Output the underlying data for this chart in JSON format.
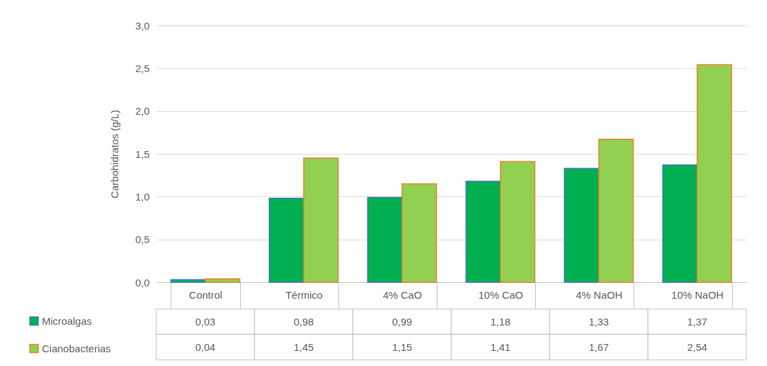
{
  "chart_data": {
    "type": "bar",
    "ylabel": "Carbohidratos (g/L)",
    "categories": [
      "Control",
      "Térmico",
      "4% CaO",
      "10% CaO",
      "4% NaOH",
      "10% NaOH"
    ],
    "series": [
      {
        "name": "Microalgas",
        "color": "#00b050",
        "values": [
          0.03,
          0.98,
          0.99,
          1.18,
          1.33,
          1.37
        ],
        "value_labels": [
          "0,03",
          "0,98",
          "0,99",
          "1,18",
          "1,33",
          "1,37"
        ]
      },
      {
        "name": "Cianobacterias",
        "color": "#92d050",
        "values": [
          0.04,
          1.45,
          1.15,
          1.41,
          1.67,
          2.54
        ],
        "value_labels": [
          "0,04",
          "1,45",
          "1,15",
          "1,41",
          "1,67",
          "2,54"
        ]
      }
    ],
    "ylim": [
      0,
      3
    ],
    "yticks": [
      {
        "value": 0,
        "label": "0,0"
      },
      {
        "value": 0.5,
        "label": "0,5"
      },
      {
        "value": 1,
        "label": "1,0"
      },
      {
        "value": 1.5,
        "label": "1,5"
      },
      {
        "value": 2,
        "label": "2,0"
      },
      {
        "value": 2.5,
        "label": "2,5"
      },
      {
        "value": 3,
        "label": "3,0"
      }
    ],
    "grid": "y",
    "legend": "bottom"
  }
}
